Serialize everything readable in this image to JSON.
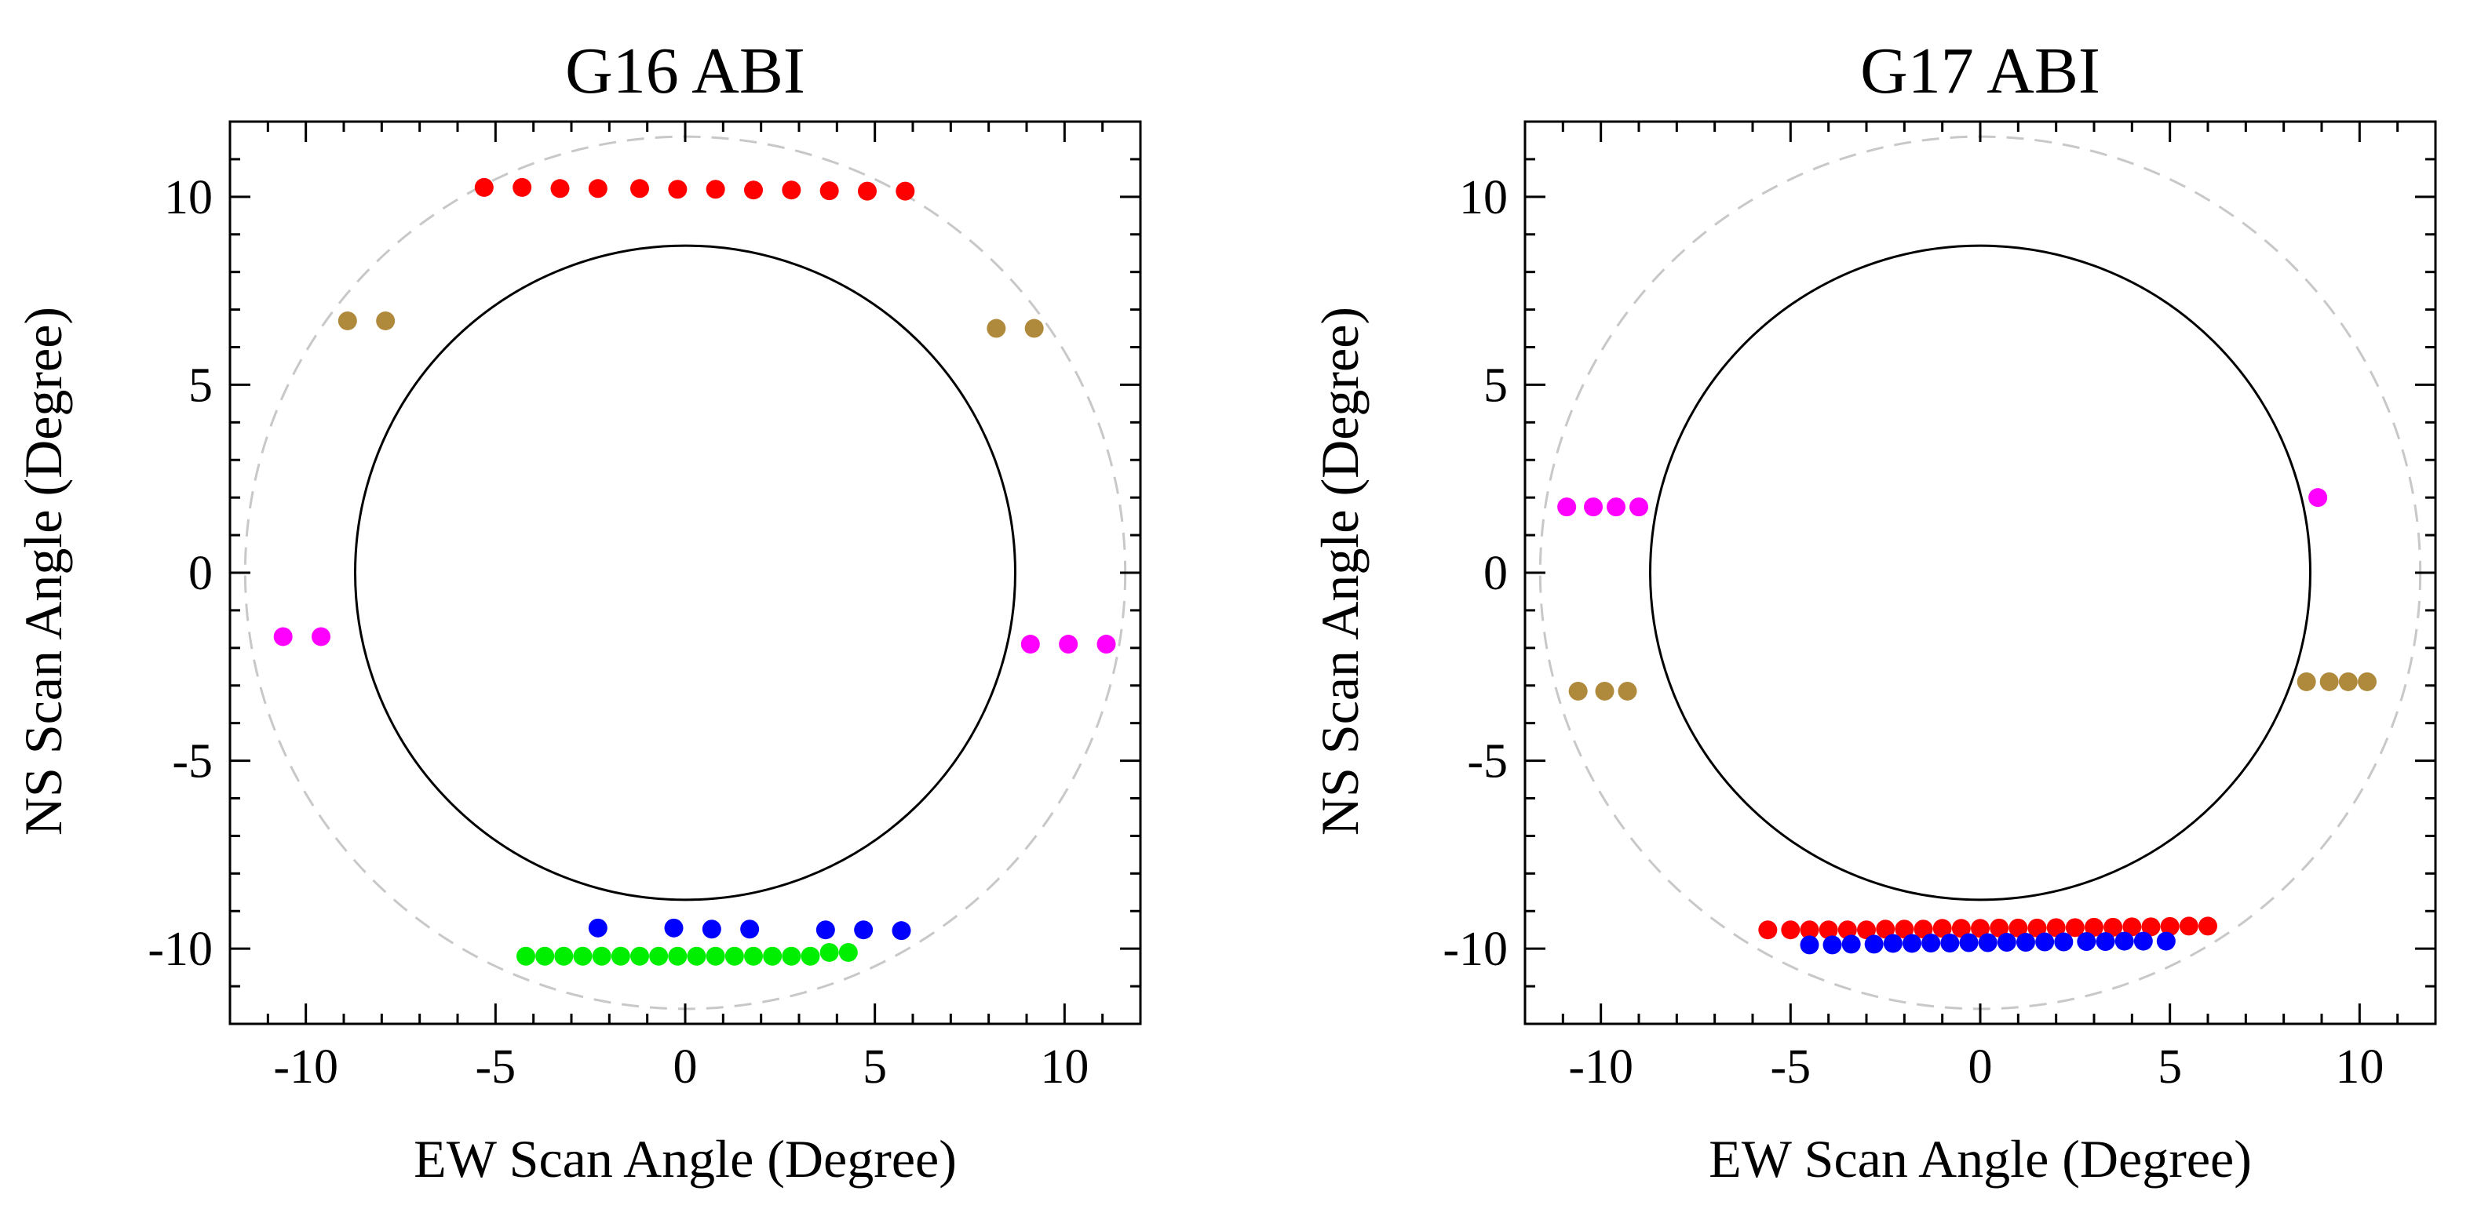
{
  "chart_data": [
    {
      "type": "scatter",
      "title": "G16 ABI",
      "xlabel": "EW Scan Angle (Degree)",
      "ylabel": "NS Scan Angle (Degree)",
      "xlim": [
        -12,
        12
      ],
      "ylim": [
        -12,
        12
      ],
      "xticks": [
        -10,
        -5,
        0,
        5,
        10
      ],
      "yticks": [
        -10,
        -5,
        0,
        5,
        10
      ],
      "xtick_labels": [
        "-10",
        "-5",
        "0",
        "5",
        "10"
      ],
      "ytick_labels": [
        "-10",
        "-5",
        "0",
        "5",
        "10"
      ],
      "reference_circles": [
        {
          "name": "earth-disk",
          "radius": 8.7,
          "style": "solid",
          "color": "#000000"
        },
        {
          "name": "scan-limit",
          "radius": 11.6,
          "style": "dashed",
          "color": "#c8c8c8"
        }
      ],
      "series": [
        {
          "name": "red",
          "color": "#ff0000",
          "x": [
            -5.3,
            -4.3,
            -3.3,
            -2.3,
            -1.2,
            -0.2,
            0.8,
            1.8,
            2.8,
            3.8,
            4.8,
            5.8
          ],
          "y": [
            10.25,
            10.25,
            10.22,
            10.22,
            10.22,
            10.2,
            10.2,
            10.18,
            10.18,
            10.16,
            10.15,
            10.15
          ]
        },
        {
          "name": "brown",
          "color": "#b08a3c",
          "x": [
            -8.9,
            -7.9,
            8.2,
            9.2
          ],
          "y": [
            6.7,
            6.7,
            6.5,
            6.5
          ]
        },
        {
          "name": "magenta",
          "color": "#ff00ff",
          "x": [
            -10.6,
            -9.6,
            9.1,
            10.1,
            11.1
          ],
          "y": [
            -1.7,
            -1.7,
            -1.9,
            -1.9,
            -1.9
          ]
        },
        {
          "name": "blue",
          "color": "#0000ff",
          "x": [
            -2.3,
            -0.3,
            0.7,
            1.7,
            3.7,
            4.7,
            5.7
          ],
          "y": [
            -9.45,
            -9.45,
            -9.48,
            -9.48,
            -9.5,
            -9.5,
            -9.52
          ]
        },
        {
          "name": "green",
          "color": "#00ee00",
          "x": [
            -4.2,
            -3.7,
            -3.2,
            -2.7,
            -2.2,
            -1.7,
            -1.2,
            -0.7,
            -0.2,
            0.3,
            0.8,
            1.3,
            1.8,
            2.3,
            2.8,
            3.3,
            3.8,
            4.3
          ],
          "y": [
            -10.2,
            -10.2,
            -10.2,
            -10.2,
            -10.2,
            -10.2,
            -10.2,
            -10.2,
            -10.2,
            -10.2,
            -10.2,
            -10.2,
            -10.2,
            -10.2,
            -10.2,
            -10.2,
            -10.1,
            -10.1
          ]
        }
      ]
    },
    {
      "type": "scatter",
      "title": "G17 ABI",
      "xlabel": "EW Scan Angle (Degree)",
      "ylabel": "NS Scan Angle (Degree)",
      "xlim": [
        -12,
        12
      ],
      "ylim": [
        -12,
        12
      ],
      "xticks": [
        -10,
        -5,
        0,
        5,
        10
      ],
      "yticks": [
        -10,
        -5,
        0,
        5,
        10
      ],
      "xtick_labels": [
        "-10",
        "-5",
        "0",
        "5",
        "10"
      ],
      "ytick_labels": [
        "-10",
        "-5",
        "0",
        "5",
        "10"
      ],
      "reference_circles": [
        {
          "name": "earth-disk",
          "radius": 8.7,
          "style": "solid",
          "color": "#000000"
        },
        {
          "name": "scan-limit",
          "radius": 11.6,
          "style": "dashed",
          "color": "#c8c8c8"
        }
      ],
      "series": [
        {
          "name": "magenta",
          "color": "#ff00ff",
          "x": [
            -10.9,
            -10.2,
            -9.6,
            -9.0,
            8.9
          ],
          "y": [
            1.75,
            1.75,
            1.75,
            1.75,
            2.0
          ]
        },
        {
          "name": "brown",
          "color": "#b08a3c",
          "x": [
            -10.6,
            -9.9,
            -9.3,
            8.6,
            9.2,
            9.7,
            10.2
          ],
          "y": [
            -3.15,
            -3.15,
            -3.15,
            -2.9,
            -2.9,
            -2.9,
            -2.9
          ]
        },
        {
          "name": "red",
          "color": "#ff0000",
          "x": [
            -5.6,
            -5.0,
            -4.5,
            -4.0,
            -3.5,
            -3.0,
            -2.5,
            -2.0,
            -1.5,
            -1.0,
            -0.5,
            0.0,
            0.5,
            1.0,
            1.5,
            2.0,
            2.5,
            3.0,
            3.5,
            4.0,
            4.5,
            5.0,
            5.5,
            6.0
          ],
          "y": [
            -9.5,
            -9.5,
            -9.5,
            -9.5,
            -9.5,
            -9.5,
            -9.48,
            -9.48,
            -9.48,
            -9.46,
            -9.46,
            -9.46,
            -9.45,
            -9.45,
            -9.45,
            -9.44,
            -9.44,
            -9.43,
            -9.43,
            -9.42,
            -9.42,
            -9.41,
            -9.4,
            -9.4
          ]
        },
        {
          "name": "blue",
          "color": "#0000ff",
          "x": [
            -4.5,
            -3.9,
            -3.4,
            -2.8,
            -2.3,
            -1.8,
            -1.3,
            -0.8,
            -0.3,
            0.2,
            0.7,
            1.2,
            1.7,
            2.2,
            2.8,
            3.3,
            3.8,
            4.3,
            4.9
          ],
          "y": [
            -9.9,
            -9.9,
            -9.88,
            -9.88,
            -9.86,
            -9.86,
            -9.85,
            -9.85,
            -9.84,
            -9.84,
            -9.83,
            -9.83,
            -9.82,
            -9.82,
            -9.81,
            -9.81,
            -9.8,
            -9.8,
            -9.8
          ]
        }
      ]
    }
  ]
}
